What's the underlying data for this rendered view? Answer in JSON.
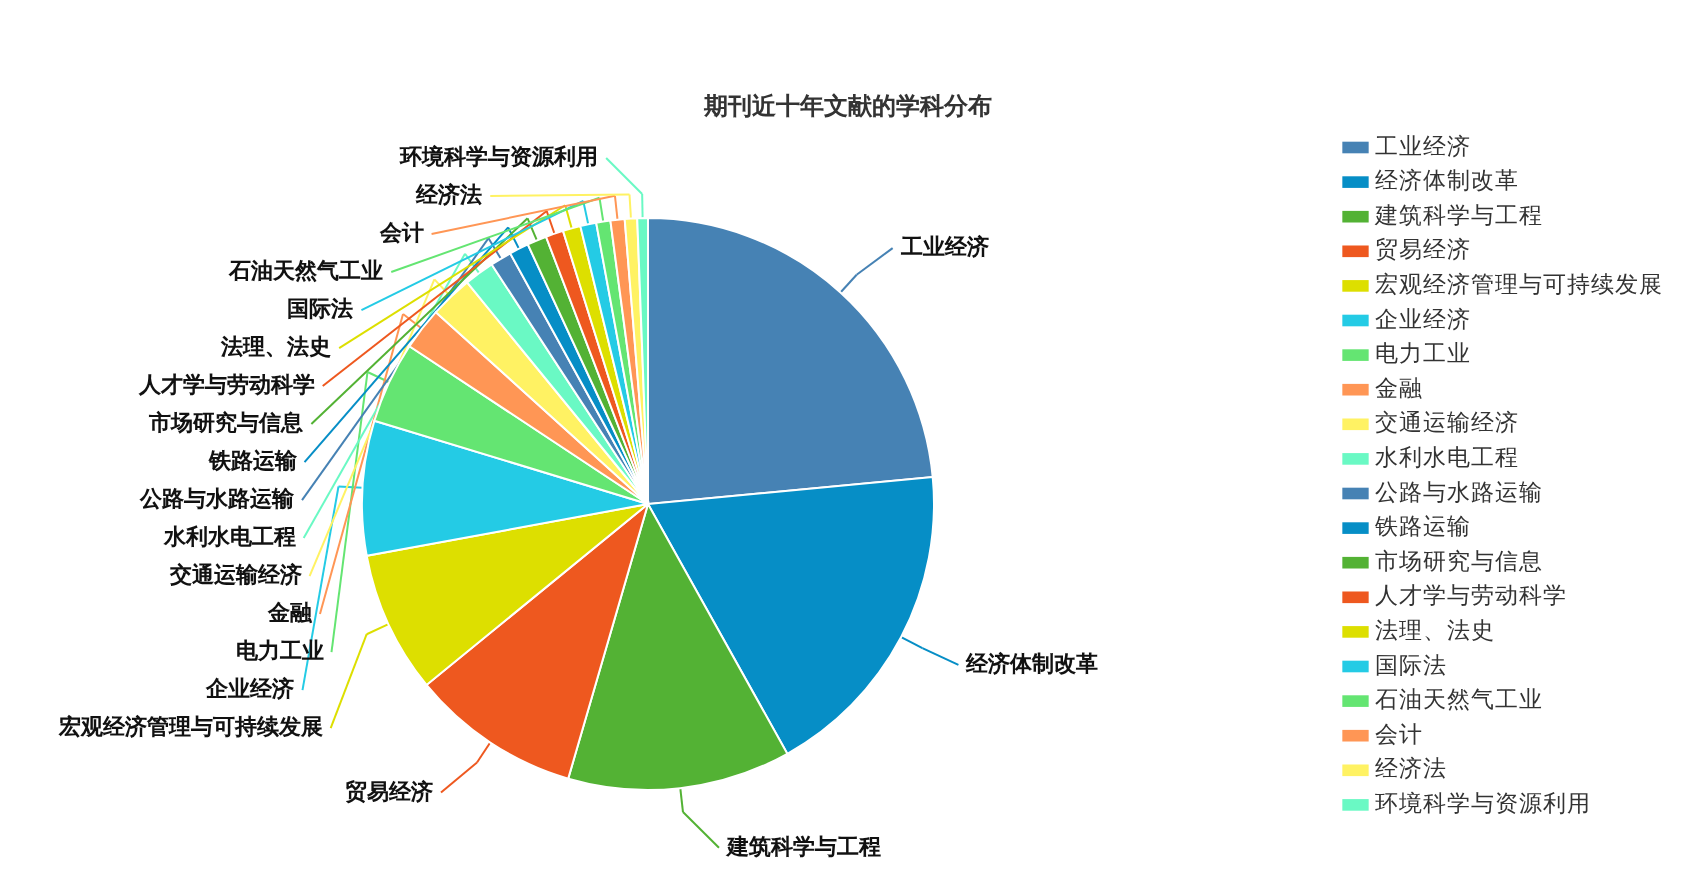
{
  "chart_data": {
    "type": "pie",
    "title": "期刊近十年文献的学科分布",
    "categories": [
      "工业经济",
      "经济体制改革",
      "建筑科学与工程",
      "贸易经济",
      "宏观经济管理与可持续发展",
      "企业经济",
      "电力工业",
      "金融",
      "交通运输经济",
      "水利水电工程",
      "公路与水路运输",
      "铁路运输",
      "市场研究与信息",
      "人才学与劳动科学",
      "法理、法史",
      "国际法",
      "石油天然气工业",
      "会计",
      "经济法",
      "环境科学与资源利用"
    ],
    "values": [
      23.5,
      18.4,
      12.6,
      9.6,
      8.0,
      7.6,
      4.6,
      2.4,
      2.4,
      1.7,
      1.2,
      1.1,
      1.1,
      1.0,
      1.0,
      0.9,
      0.8,
      0.8,
      0.7,
      0.6
    ],
    "colors": [
      "#4682b4",
      "#068ec6",
      "#53b234",
      "#ee581f",
      "#dddf00",
      "#24cbe5",
      "#64e572",
      "#ff9655",
      "#fff263",
      "#6af9c4",
      "#4682b4",
      "#068ec6",
      "#53b234",
      "#ee581f",
      "#dddf00",
      "#24cbe5",
      "#64e572",
      "#ff9655",
      "#fff263",
      "#6af9c4"
    ],
    "legend": "right"
  }
}
